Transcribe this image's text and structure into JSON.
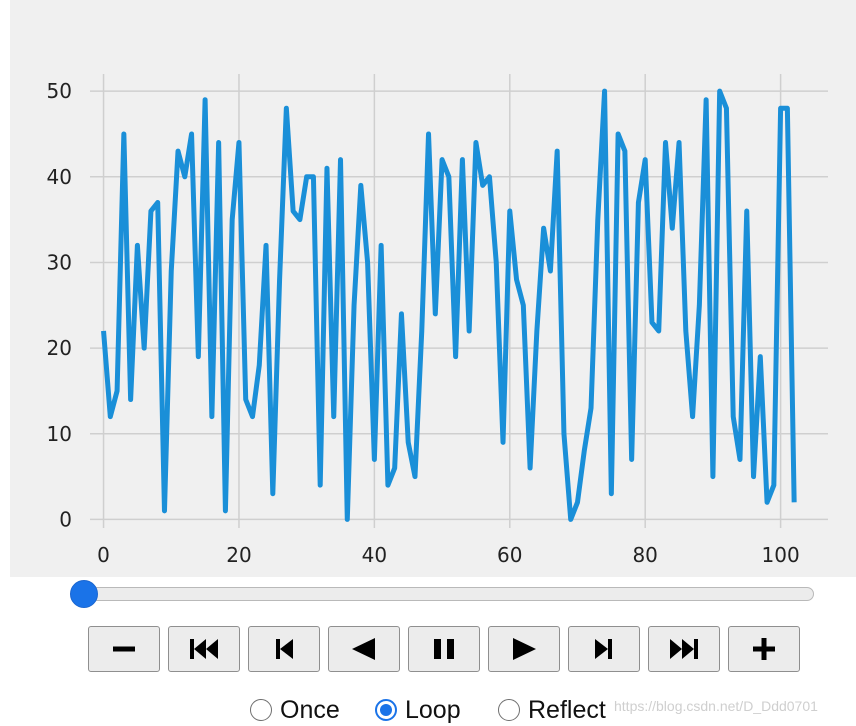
{
  "chart_data": {
    "type": "line",
    "title": "",
    "xlabel": "",
    "ylabel": "",
    "xlim": [
      -2,
      107
    ],
    "ylim": [
      -1,
      52
    ],
    "grid": true,
    "xticks": [
      0,
      20,
      40,
      60,
      80,
      100
    ],
    "yticks": [
      0,
      10,
      20,
      30,
      40,
      50
    ],
    "line_color": "#1a8fd8",
    "x": [
      0,
      1,
      2,
      3,
      4,
      5,
      6,
      7,
      8,
      9,
      10,
      11,
      12,
      13,
      14,
      15,
      16,
      17,
      18,
      19,
      20,
      21,
      22,
      23,
      24,
      25,
      26,
      27,
      28,
      29,
      30,
      31,
      32,
      33,
      34,
      35,
      36,
      37,
      38,
      39,
      40,
      41,
      42,
      43,
      44,
      45,
      46,
      47,
      48,
      49,
      50,
      51,
      52,
      53,
      54,
      55,
      56,
      57,
      58,
      59,
      60,
      61,
      62,
      63,
      64,
      65,
      66,
      67,
      68,
      69,
      70,
      71,
      72,
      73,
      74,
      75,
      76,
      77,
      78,
      79,
      80,
      81,
      82,
      83,
      84,
      85,
      86,
      87,
      88,
      89,
      90,
      91,
      92,
      93,
      94,
      95,
      96,
      97,
      98,
      99,
      100,
      101,
      102
    ],
    "values": [
      22,
      12,
      15,
      45,
      14,
      32,
      20,
      36,
      37,
      1,
      29,
      43,
      40,
      45,
      19,
      49,
      12,
      44,
      1,
      35,
      44,
      14,
      12,
      18,
      32,
      3,
      28,
      48,
      36,
      35,
      40,
      40,
      4,
      41,
      12,
      42,
      0,
      25,
      39,
      30,
      7,
      32,
      4,
      6,
      24,
      9,
      5,
      22,
      45,
      24,
      42,
      40,
      19,
      42,
      22,
      44,
      39,
      40,
      30,
      9,
      36,
      28,
      25,
      6,
      22,
      34,
      29,
      43,
      10,
      0,
      2,
      8,
      13,
      35,
      50,
      3,
      45,
      43,
      7,
      37,
      42,
      23,
      22,
      44,
      34,
      44,
      22,
      12,
      25,
      49,
      5,
      50,
      48,
      12,
      7,
      36,
      5,
      19,
      2,
      4,
      48,
      48,
      2
    ]
  },
  "slider": {
    "value": 0,
    "min": 0,
    "max": 102,
    "color": "#1a73e8"
  },
  "controls": {
    "buttons": [
      {
        "name": "slower-button",
        "icon": "minus-icon"
      },
      {
        "name": "first-frame-button",
        "icon": "skip-to-start-icon"
      },
      {
        "name": "previous-frame-button",
        "icon": "step-back-icon"
      },
      {
        "name": "play-reverse-button",
        "icon": "play-reverse-icon"
      },
      {
        "name": "pause-button",
        "icon": "pause-icon"
      },
      {
        "name": "play-button",
        "icon": "play-icon"
      },
      {
        "name": "next-frame-button",
        "icon": "step-forward-icon"
      },
      {
        "name": "last-frame-button",
        "icon": "skip-to-end-icon"
      },
      {
        "name": "faster-button",
        "icon": "plus-icon"
      }
    ]
  },
  "modes": {
    "options": [
      "Once",
      "Loop",
      "Reflect"
    ],
    "selected": "Loop"
  },
  "watermark": "https://blog.csdn.net/D_Ddd0701"
}
